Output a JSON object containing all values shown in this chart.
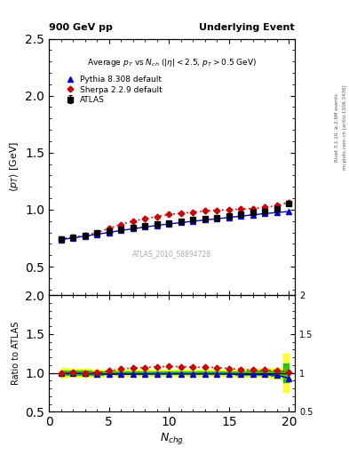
{
  "title_left": "900 GeV pp",
  "title_right": "Underlying Event",
  "plot_title": "Average $p_T$ vs $N_{ch}$ ($|\\eta| < 2.5$, $p_T > 0.5$ GeV)",
  "ylabel_main": "$\\langle p_T \\rangle$ [GeV]",
  "ylabel_ratio": "Ratio to ATLAS",
  "xlabel": "$N_{chg}$",
  "watermark": "ATLAS_2010_S8894728",
  "right_label_top": "Rivet 3.1.10, ≥ 2.6M events",
  "right_label_bot": "mcplots.cern.ch [arXiv:1306.3436]",
  "xlim": [
    0,
    20.5
  ],
  "main_ylim": [
    0.25,
    2.5
  ],
  "ratio_ylim": [
    0.5,
    2.0
  ],
  "main_yticks": [
    0.5,
    1.0,
    1.5,
    2.0,
    2.5
  ],
  "ratio_yticks": [
    0.5,
    1.0,
    1.5,
    2.0
  ],
  "atlas_x": [
    1,
    2,
    3,
    4,
    5,
    6,
    7,
    8,
    9,
    10,
    11,
    12,
    13,
    14,
    15,
    16,
    17,
    18,
    19,
    20
  ],
  "atlas_y": [
    0.745,
    0.755,
    0.775,
    0.795,
    0.815,
    0.83,
    0.845,
    0.86,
    0.873,
    0.885,
    0.895,
    0.91,
    0.92,
    0.93,
    0.945,
    0.96,
    0.975,
    0.985,
    1.005,
    1.055
  ],
  "atlas_yerr": [
    0.015,
    0.012,
    0.01,
    0.009,
    0.008,
    0.008,
    0.007,
    0.007,
    0.007,
    0.007,
    0.007,
    0.007,
    0.007,
    0.008,
    0.008,
    0.008,
    0.009,
    0.01,
    0.012,
    0.015
  ],
  "pythia_x": [
    1,
    2,
    3,
    4,
    5,
    6,
    7,
    8,
    9,
    10,
    11,
    12,
    13,
    14,
    15,
    16,
    17,
    18,
    19,
    20
  ],
  "pythia_y": [
    0.738,
    0.752,
    0.768,
    0.785,
    0.8,
    0.818,
    0.832,
    0.848,
    0.862,
    0.875,
    0.887,
    0.898,
    0.91,
    0.92,
    0.932,
    0.943,
    0.955,
    0.965,
    0.975,
    0.984
  ],
  "sherpa_x": [
    1,
    2,
    3,
    4,
    5,
    6,
    7,
    8,
    9,
    10,
    11,
    12,
    13,
    14,
    15,
    16,
    17,
    18,
    19,
    20
  ],
  "sherpa_y": [
    0.745,
    0.758,
    0.775,
    0.8,
    0.835,
    0.87,
    0.9,
    0.92,
    0.94,
    0.958,
    0.968,
    0.978,
    0.988,
    0.995,
    1.0,
    1.005,
    1.01,
    1.02,
    1.035,
    1.065
  ],
  "pythia_ratio": [
    0.991,
    0.996,
    0.991,
    0.987,
    0.982,
    0.985,
    0.984,
    0.986,
    0.988,
    0.989,
    0.99,
    0.987,
    0.989,
    0.989,
    0.986,
    0.982,
    0.98,
    0.98,
    0.97,
    0.932
  ],
  "sherpa_ratio": [
    1.0,
    1.004,
    1.0,
    1.006,
    1.025,
    1.048,
    1.065,
    1.07,
    1.077,
    1.083,
    1.081,
    1.074,
    1.073,
    1.07,
    1.058,
    1.047,
    1.036,
    1.036,
    1.03,
    1.009
  ],
  "atlas_color": "#000000",
  "pythia_color": "#0000cc",
  "sherpa_color": "#cc0000",
  "band_yellow": "#ffff00",
  "band_green": "#00bb00",
  "ratio_line_color": "#000000",
  "yellow_width": [
    0.06,
    0.055,
    0.05,
    0.045,
    0.04,
    0.04,
    0.04,
    0.04,
    0.04,
    0.04,
    0.04,
    0.04,
    0.04,
    0.04,
    0.04,
    0.045,
    0.05,
    0.055,
    0.07,
    0.25
  ],
  "green_width": [
    0.03,
    0.027,
    0.025,
    0.022,
    0.02,
    0.02,
    0.02,
    0.02,
    0.02,
    0.02,
    0.02,
    0.02,
    0.02,
    0.02,
    0.02,
    0.022,
    0.025,
    0.028,
    0.035,
    0.12
  ]
}
